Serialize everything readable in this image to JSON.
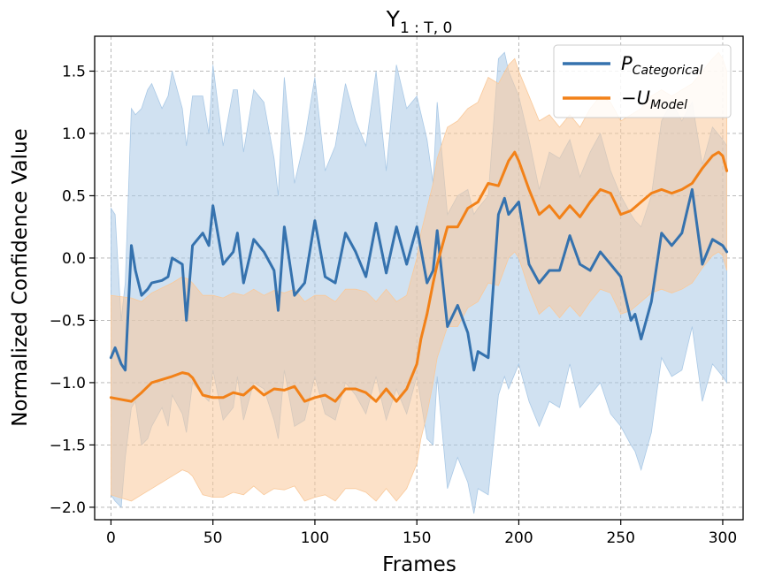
{
  "chart_data": {
    "type": "line",
    "title": "Y",
    "title_subscript": "1 : T, 0",
    "xlabel": "Frames",
    "ylabel": "Normalized Confidence Value",
    "xlim": [
      -8,
      310
    ],
    "ylim": [
      -2.1,
      1.78
    ],
    "xticks": [
      0,
      50,
      100,
      150,
      200,
      250,
      300
    ],
    "yticks": [
      -2.0,
      -1.5,
      -1.0,
      -0.5,
      0.0,
      0.5,
      1.0,
      1.5
    ],
    "xtick_labels": [
      "0",
      "50",
      "100",
      "150",
      "200",
      "250",
      "300"
    ],
    "ytick_labels": [
      "−2.0",
      "−1.5",
      "−1.0",
      "−0.5",
      "0.0",
      "0.5",
      "1.0",
      "1.5"
    ],
    "grid": true,
    "legend_position": "top-right",
    "series": [
      {
        "name_main": "P",
        "name_sub": "Categorical",
        "color": "#3572ae",
        "band_color": "#aac9e6",
        "x": [
          0,
          2,
          5,
          7,
          10,
          12,
          15,
          18,
          20,
          25,
          28,
          30,
          35,
          37,
          40,
          45,
          48,
          50,
          55,
          60,
          62,
          65,
          70,
          75,
          80,
          82,
          85,
          90,
          95,
          100,
          105,
          110,
          115,
          120,
          125,
          130,
          135,
          140,
          145,
          150,
          155,
          158,
          160,
          165,
          170,
          175,
          178,
          180,
          185,
          190,
          193,
          195,
          200,
          205,
          210,
          215,
          220,
          225,
          230,
          235,
          240,
          245,
          250,
          255,
          257,
          260,
          265,
          270,
          275,
          280,
          285,
          290,
          295,
          300,
          302
        ],
        "y": [
          -0.8,
          -0.72,
          -0.85,
          -0.9,
          0.1,
          -0.1,
          -0.3,
          -0.25,
          -0.2,
          -0.18,
          -0.15,
          0.0,
          -0.05,
          -0.5,
          0.1,
          0.2,
          0.1,
          0.42,
          -0.05,
          0.05,
          0.2,
          -0.2,
          0.15,
          0.05,
          -0.1,
          -0.42,
          0.25,
          -0.3,
          -0.2,
          0.3,
          -0.15,
          -0.2,
          0.2,
          0.05,
          -0.15,
          0.28,
          -0.12,
          0.25,
          -0.05,
          0.25,
          -0.2,
          -0.1,
          0.22,
          -0.55,
          -0.38,
          -0.6,
          -0.9,
          -0.75,
          -0.8,
          0.35,
          0.48,
          0.35,
          0.45,
          -0.05,
          -0.2,
          -0.1,
          -0.1,
          0.18,
          -0.05,
          -0.1,
          0.05,
          -0.05,
          -0.15,
          -0.5,
          -0.45,
          -0.65,
          -0.35,
          0.2,
          0.1,
          0.2,
          0.55,
          -0.05,
          0.15,
          0.1,
          0.05
        ],
        "upper": [
          0.4,
          0.35,
          -0.5,
          -0.2,
          1.2,
          1.15,
          1.2,
          1.35,
          1.4,
          1.2,
          1.3,
          1.5,
          1.2,
          0.9,
          1.3,
          1.3,
          1.0,
          1.55,
          0.9,
          1.35,
          1.35,
          0.85,
          1.35,
          1.25,
          0.8,
          0.5,
          1.45,
          0.6,
          0.95,
          1.45,
          0.7,
          0.9,
          1.4,
          1.1,
          0.9,
          1.5,
          0.7,
          1.55,
          1.2,
          1.3,
          0.95,
          0.6,
          1.25,
          0.35,
          0.5,
          0.55,
          0.35,
          0.4,
          0.5,
          1.6,
          1.65,
          1.5,
          1.3,
          0.95,
          0.55,
          0.85,
          0.8,
          0.95,
          0.65,
          0.85,
          1.0,
          0.7,
          0.5,
          0.35,
          0.3,
          0.25,
          0.5,
          1.1,
          1.25,
          1.1,
          1.25,
          0.75,
          1.05,
          0.95,
          0.9
        ],
        "lower": [
          -1.9,
          -1.95,
          -2.0,
          -1.6,
          -1.2,
          -1.15,
          -1.5,
          -1.45,
          -1.35,
          -1.2,
          -1.35,
          -1.1,
          -1.25,
          -1.4,
          -1.0,
          -1.1,
          -1.15,
          -0.9,
          -1.3,
          -1.2,
          -0.95,
          -1.3,
          -1.0,
          -1.05,
          -1.3,
          -1.45,
          -0.9,
          -1.35,
          -1.3,
          -0.95,
          -1.25,
          -1.3,
          -1.0,
          -1.1,
          -1.25,
          -0.95,
          -1.3,
          -1.05,
          -1.25,
          -0.95,
          -1.45,
          -1.5,
          -0.95,
          -1.85,
          -1.6,
          -1.8,
          -2.05,
          -1.85,
          -1.9,
          -1.1,
          -0.95,
          -1.05,
          -0.85,
          -1.15,
          -1.35,
          -1.15,
          -1.2,
          -0.85,
          -1.2,
          -1.1,
          -1.0,
          -1.25,
          -1.35,
          -1.5,
          -1.55,
          -1.7,
          -1.4,
          -0.8,
          -0.95,
          -0.9,
          -0.55,
          -1.15,
          -0.85,
          -0.95,
          -1.0
        ]
      },
      {
        "name_main": "−U",
        "name_sub": "Model",
        "color": "#f28118",
        "band_color": "#f9c99a",
        "x": [
          0,
          10,
          15,
          20,
          30,
          35,
          38,
          40,
          45,
          50,
          55,
          60,
          65,
          70,
          75,
          80,
          85,
          90,
          95,
          100,
          105,
          110,
          115,
          120,
          125,
          130,
          135,
          140,
          145,
          150,
          152,
          155,
          158,
          160,
          165,
          170,
          175,
          180,
          185,
          190,
          195,
          198,
          200,
          205,
          210,
          215,
          220,
          225,
          230,
          235,
          240,
          245,
          250,
          255,
          260,
          265,
          270,
          275,
          280,
          285,
          290,
          295,
          298,
          300,
          302
        ],
        "y": [
          -1.12,
          -1.15,
          -1.08,
          -1.0,
          -0.95,
          -0.92,
          -0.93,
          -0.96,
          -1.1,
          -1.12,
          -1.12,
          -1.08,
          -1.1,
          -1.03,
          -1.1,
          -1.05,
          -1.06,
          -1.03,
          -1.15,
          -1.12,
          -1.1,
          -1.15,
          -1.05,
          -1.05,
          -1.08,
          -1.15,
          -1.05,
          -1.15,
          -1.05,
          -0.85,
          -0.65,
          -0.45,
          -0.2,
          -0.05,
          0.25,
          0.25,
          0.4,
          0.45,
          0.6,
          0.58,
          0.78,
          0.85,
          0.78,
          0.55,
          0.35,
          0.42,
          0.32,
          0.42,
          0.33,
          0.45,
          0.55,
          0.52,
          0.35,
          0.38,
          0.45,
          0.52,
          0.55,
          0.52,
          0.55,
          0.6,
          0.72,
          0.82,
          0.85,
          0.82,
          0.7
        ],
        "upper": [
          -0.3,
          -0.32,
          -0.35,
          -0.28,
          -0.2,
          -0.15,
          -0.17,
          -0.2,
          -0.3,
          -0.3,
          -0.32,
          -0.28,
          -0.3,
          -0.25,
          -0.3,
          -0.26,
          -0.28,
          -0.25,
          -0.35,
          -0.3,
          -0.3,
          -0.35,
          -0.25,
          -0.25,
          -0.27,
          -0.35,
          -0.25,
          -0.35,
          -0.3,
          0.0,
          0.2,
          0.4,
          0.6,
          0.8,
          1.05,
          1.1,
          1.2,
          1.25,
          1.45,
          1.4,
          1.55,
          1.6,
          1.5,
          1.3,
          1.1,
          1.15,
          1.05,
          1.15,
          1.05,
          1.2,
          1.3,
          1.25,
          1.1,
          1.15,
          1.2,
          1.3,
          1.35,
          1.3,
          1.35,
          1.4,
          1.5,
          1.6,
          1.65,
          1.6,
          1.5
        ],
        "lower": [
          -1.9,
          -1.95,
          -1.9,
          -1.85,
          -1.75,
          -1.7,
          -1.72,
          -1.75,
          -1.9,
          -1.92,
          -1.92,
          -1.88,
          -1.9,
          -1.83,
          -1.9,
          -1.85,
          -1.86,
          -1.83,
          -1.95,
          -1.92,
          -1.9,
          -1.95,
          -1.85,
          -1.85,
          -1.88,
          -1.95,
          -1.85,
          -1.95,
          -1.85,
          -1.65,
          -1.45,
          -1.25,
          -1.0,
          -0.8,
          -0.55,
          -0.55,
          -0.4,
          -0.35,
          -0.2,
          -0.22,
          0.0,
          0.05,
          0.0,
          -0.25,
          -0.45,
          -0.38,
          -0.48,
          -0.38,
          -0.47,
          -0.35,
          -0.25,
          -0.28,
          -0.45,
          -0.42,
          -0.35,
          -0.28,
          -0.25,
          -0.28,
          -0.25,
          -0.2,
          -0.08,
          0.02,
          0.05,
          0.02,
          -0.1
        ]
      }
    ]
  }
}
